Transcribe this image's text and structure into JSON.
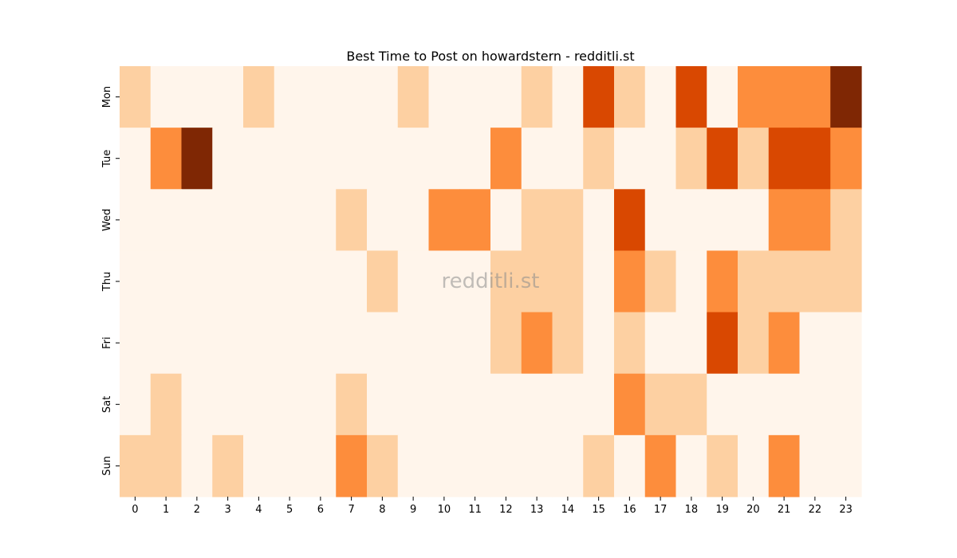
{
  "chart_data": {
    "type": "heatmap",
    "title": "Best Time to Post on howardstern - redditli.st",
    "watermark": "redditli.st",
    "xlabel": "",
    "ylabel": "",
    "x_categories": [
      "0",
      "1",
      "2",
      "3",
      "4",
      "5",
      "6",
      "7",
      "8",
      "9",
      "10",
      "11",
      "12",
      "13",
      "14",
      "15",
      "16",
      "17",
      "18",
      "19",
      "20",
      "21",
      "22",
      "23"
    ],
    "y_categories": [
      "Mon",
      "Tue",
      "Wed",
      "Thu",
      "Fri",
      "Sat",
      "Sun"
    ],
    "color_scale": [
      "#fff5eb",
      "#fdd0a2",
      "#fd8d3c",
      "#d94801",
      "#7f2704"
    ],
    "values": [
      [
        1,
        0,
        0,
        0,
        1,
        0,
        0,
        0,
        0,
        1,
        0,
        0,
        0,
        1,
        0,
        3,
        1,
        0,
        3,
        0,
        2,
        2,
        2,
        4
      ],
      [
        0,
        2,
        4,
        0,
        0,
        0,
        0,
        0,
        0,
        0,
        0,
        0,
        2,
        0,
        0,
        1,
        0,
        0,
        1,
        3,
        1,
        3,
        3,
        2
      ],
      [
        0,
        0,
        0,
        0,
        0,
        0,
        0,
        1,
        0,
        0,
        2,
        2,
        0,
        1,
        1,
        0,
        3,
        0,
        0,
        0,
        0,
        2,
        2,
        1
      ],
      [
        0,
        0,
        0,
        0,
        0,
        0,
        0,
        0,
        1,
        0,
        0,
        0,
        1,
        1,
        1,
        0,
        2,
        1,
        0,
        2,
        1,
        1,
        1,
        1
      ],
      [
        0,
        0,
        0,
        0,
        0,
        0,
        0,
        0,
        0,
        0,
        0,
        0,
        1,
        2,
        1,
        0,
        1,
        0,
        0,
        3,
        1,
        2,
        0,
        0
      ],
      [
        0,
        1,
        0,
        0,
        0,
        0,
        0,
        1,
        0,
        0,
        0,
        0,
        0,
        0,
        0,
        0,
        2,
        1,
        1,
        0,
        0,
        0,
        0,
        0
      ],
      [
        1,
        1,
        0,
        1,
        0,
        0,
        0,
        2,
        1,
        0,
        0,
        0,
        0,
        0,
        0,
        1,
        0,
        2,
        0,
        1,
        0,
        2,
        0,
        0
      ]
    ]
  }
}
